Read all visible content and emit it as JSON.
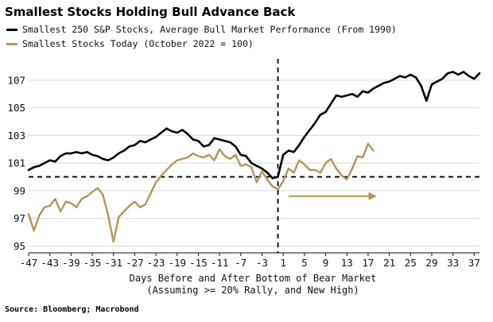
{
  "title": "Smallest Stocks Holding Bull Advance Back",
  "legend": [
    {
      "label": "Smallest 250 S&P Stocks, Average Bull Market Performance (From 1990)",
      "color": "#000000"
    },
    {
      "label": "Smallest Stocks Today (October 2022 = 100)",
      "color": "#b3955b"
    }
  ],
  "source": "Source: Bloomberg; Macrobond",
  "chart_data": {
    "type": "line",
    "xlabel": "Days Before and After Bottom of Bear Market",
    "xlabel2": "(Assuming >= 20% Rally, and New High)",
    "xlim": [
      -47,
      38
    ],
    "ylim": [
      94.5,
      108.2
    ],
    "xticks": [
      -47,
      -43,
      -39,
      -35,
      -31,
      -27,
      -23,
      -19,
      -15,
      -11,
      -7,
      -3,
      1,
      5,
      9,
      13,
      17,
      21,
      25,
      29,
      33,
      37
    ],
    "yticks": [
      95,
      97,
      99,
      101,
      103,
      105,
      107
    ],
    "reference_lines": {
      "y": 100,
      "x": 0,
      "style": "dashed"
    },
    "grid": "horizontal",
    "series": [
      {
        "name": "Smallest 250 S&P Stocks, Average Bull Market Performance (From 1990)",
        "color": "#000000",
        "x": [
          -47,
          -46,
          -45,
          -44,
          -43,
          -42,
          -41,
          -40,
          -39,
          -38,
          -37,
          -36,
          -35,
          -34,
          -33,
          -32,
          -31,
          -30,
          -29,
          -28,
          -27,
          -26,
          -25,
          -24,
          -23,
          -22,
          -21,
          -20,
          -19,
          -18,
          -17,
          -16,
          -15,
          -14,
          -13,
          -12,
          -11,
          -10,
          -9,
          -8,
          -7,
          -6,
          -5,
          -4,
          -3,
          -2,
          -1,
          0,
          1,
          2,
          3,
          4,
          5,
          6,
          7,
          8,
          9,
          10,
          11,
          12,
          13,
          14,
          15,
          16,
          17,
          18,
          19,
          20,
          21,
          22,
          23,
          24,
          25,
          26,
          27,
          28,
          29,
          30,
          31,
          32,
          33,
          34,
          35,
          36,
          37,
          38
        ],
        "values": [
          100.5,
          100.7,
          100.8,
          101.0,
          101.2,
          101.1,
          101.5,
          101.7,
          101.7,
          101.8,
          101.7,
          101.8,
          101.6,
          101.5,
          101.3,
          101.2,
          101.4,
          101.7,
          101.9,
          102.2,
          102.3,
          102.6,
          102.5,
          102.7,
          102.9,
          103.2,
          103.5,
          103.3,
          103.2,
          103.4,
          103.1,
          102.7,
          102.6,
          102.2,
          102.3,
          102.8,
          102.7,
          102.6,
          102.5,
          102.2,
          101.6,
          101.5,
          101.0,
          100.8,
          100.6,
          100.3,
          99.9,
          100.0,
          101.6,
          101.9,
          101.8,
          102.3,
          102.9,
          103.4,
          103.9,
          104.5,
          104.7,
          105.3,
          105.9,
          105.8,
          105.9,
          106.0,
          105.8,
          106.2,
          106.1,
          106.4,
          106.6,
          106.8,
          106.9,
          107.1,
          107.3,
          107.2,
          107.4,
          107.2,
          106.6,
          105.5,
          106.7,
          106.9,
          107.1,
          107.5,
          107.6,
          107.4,
          107.6,
          107.3,
          107.1,
          107.5
        ]
      },
      {
        "name": "Smallest Stocks Today (October 2022 = 100)",
        "color": "#b3955b",
        "x": [
          -47,
          -46,
          -45,
          -44,
          -43,
          -42,
          -41,
          -40,
          -39,
          -38,
          -37,
          -36,
          -35,
          -34,
          -33,
          -32,
          -31,
          -30,
          -29,
          -28,
          -27,
          -26,
          -25,
          -24,
          -23,
          -22,
          -21,
          -20,
          -19,
          -18,
          -17,
          -16,
          -15,
          -14,
          -13,
          -12,
          -11,
          -10,
          -9,
          -8,
          -7,
          -6,
          -5,
          -4,
          -3,
          -2,
          -1,
          0,
          1,
          2,
          3,
          4,
          5,
          6,
          7,
          8,
          9,
          10,
          11,
          12,
          13,
          14,
          15,
          16,
          17,
          18
        ],
        "values": [
          97.3,
          96.1,
          97.2,
          97.8,
          97.9,
          98.4,
          97.5,
          98.2,
          98.1,
          97.8,
          98.4,
          98.6,
          98.9,
          99.2,
          98.7,
          97.2,
          95.3,
          97.1,
          97.5,
          97.9,
          98.2,
          97.8,
          98.0,
          98.8,
          99.6,
          100.1,
          100.5,
          100.9,
          101.2,
          101.3,
          101.4,
          101.7,
          101.5,
          101.4,
          101.6,
          101.2,
          102.0,
          101.5,
          101.3,
          101.6,
          100.8,
          100.9,
          100.7,
          99.6,
          100.4,
          99.8,
          99.3,
          99.1,
          99.7,
          100.6,
          100.3,
          101.2,
          100.9,
          100.5,
          100.5,
          100.3,
          101.0,
          101.3,
          100.6,
          100.1,
          99.8,
          100.6,
          101.5,
          101.4,
          102.4,
          101.9
        ]
      }
    ]
  }
}
